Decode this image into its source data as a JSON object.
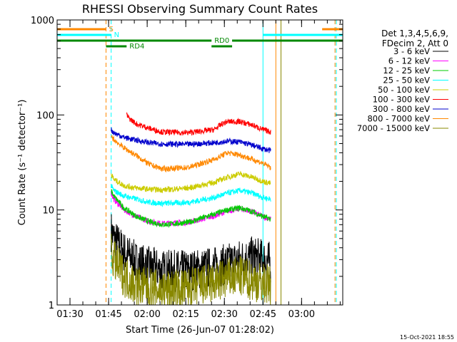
{
  "chart_data": {
    "type": "line",
    "title": "RHESSI Observing Summary Count Rates",
    "xlabel": "Start Time (26-Jun-07 01:28:02)",
    "ylabel": "Count Rate (s⁻¹ detector⁻¹)",
    "yscale": "log",
    "ylim": [
      1,
      1000
    ],
    "xlim_minutes": [
      85,
      196
    ],
    "x_ticks": [
      {
        "t": 90,
        "label": "01:30"
      },
      {
        "t": 105,
        "label": "01:45"
      },
      {
        "t": 120,
        "label": "02:00"
      },
      {
        "t": 135,
        "label": "02:15"
      },
      {
        "t": 150,
        "label": "02:30"
      },
      {
        "t": 165,
        "label": "02:45"
      },
      {
        "t": 180,
        "label": "03:00"
      }
    ],
    "y_ticks": [
      {
        "v": 1,
        "label": "1"
      },
      {
        "v": 10,
        "label": "10"
      },
      {
        "v": 100,
        "label": "100"
      },
      {
        "v": 1000,
        "label": "1000"
      }
    ],
    "timestamp": "15-Oct-2021 18:55",
    "legend_header": [
      "Det 1,3,4,5,6,9,",
      "FDecim 2, Att 0"
    ],
    "legend_position": "right",
    "series": [
      {
        "name": "3 - 6 keV",
        "color": "#000000",
        "t": [
          106,
          107,
          111,
          116,
          121,
          126,
          136,
          146,
          151,
          156,
          161,
          165,
          168
        ],
        "values": [
          6,
          5,
          3.6,
          2.8,
          2.5,
          2.3,
          2.3,
          2.5,
          2.7,
          3.0,
          3.2,
          3.0,
          2.8
        ]
      },
      {
        "name": "6 - 12 keV",
        "color": "#ff00ff",
        "t": [
          106,
          107,
          111,
          116,
          121,
          126,
          136,
          146,
          151,
          156,
          161,
          165,
          168
        ],
        "values": [
          15,
          13,
          10,
          8.5,
          7.5,
          7.2,
          7.4,
          8.6,
          9.7,
          10.3,
          9.6,
          8.5,
          8
        ]
      },
      {
        "name": "12 - 25 keV",
        "color": "#00cc00",
        "t": [
          106,
          107,
          111,
          116,
          121,
          126,
          136,
          146,
          151,
          156,
          161,
          165,
          168
        ],
        "values": [
          16,
          14,
          10.5,
          8.5,
          7.5,
          7.0,
          7.4,
          9.0,
          10.0,
          10.5,
          9.6,
          8.5,
          8
        ]
      },
      {
        "name": "25 - 50 keV",
        "color": "#00ffff",
        "t": [
          106,
          107,
          111,
          116,
          121,
          126,
          136,
          146,
          151,
          156,
          161,
          165,
          168
        ],
        "values": [
          18,
          16,
          14,
          13,
          12,
          11.7,
          12,
          13.5,
          15,
          16,
          15,
          13.5,
          13
        ]
      },
      {
        "name": "50 - 100 keV",
        "color": "#cccc00",
        "t": [
          106,
          107,
          111,
          116,
          121,
          126,
          136,
          146,
          151,
          156,
          161,
          165,
          168
        ],
        "values": [
          24,
          21,
          18,
          17,
          16.5,
          16.3,
          17,
          19.5,
          22,
          24,
          22,
          20,
          19
        ]
      },
      {
        "name": "100 - 300 keV",
        "color": "#ff0000",
        "t": [
          112,
          113,
          116,
          121,
          126,
          136,
          146,
          149,
          151,
          156,
          161,
          165,
          168
        ],
        "values": [
          100,
          92,
          80,
          72,
          66,
          65,
          70,
          80,
          85,
          85,
          78,
          70,
          66
        ]
      },
      {
        "name": "300 - 800 keV",
        "color": "#0000cc",
        "t": [
          106,
          107,
          111,
          116,
          121,
          126,
          136,
          146,
          151,
          156,
          161,
          165,
          168
        ],
        "values": [
          70,
          65,
          58,
          54,
          51,
          49.5,
          49,
          51,
          53,
          52,
          48,
          44,
          42
        ]
      },
      {
        "name": "800 - 7000 keV",
        "color": "#ff8800",
        "t": [
          106,
          107,
          111,
          116,
          121,
          126,
          136,
          146,
          151,
          156,
          161,
          165,
          168
        ],
        "values": [
          60,
          55,
          45,
          37,
          30,
          27,
          28,
          34,
          40,
          38,
          34,
          31,
          28
        ]
      },
      {
        "name": "7000 - 15000 keV",
        "color": "#888800",
        "t": [
          106,
          107,
          111,
          116,
          121,
          126,
          136,
          146,
          151,
          156,
          161,
          165,
          168
        ],
        "values": [
          3.4,
          3.0,
          2.0,
          1.6,
          1.5,
          1.4,
          1.5,
          1.7,
          1.9,
          2.0,
          1.8,
          1.7,
          1.6
        ]
      }
    ],
    "flags": [
      {
        "label": "S",
        "color": "#ff8800",
        "segments": [
          [
            85,
            104
          ],
          [
            188,
            196
          ]
        ]
      },
      {
        "label": "N",
        "color": "#00ffff",
        "segments": [
          [
            85,
            106
          ],
          [
            165,
            196
          ]
        ]
      },
      {
        "label": "RD0",
        "color": "#008800",
        "segments": [
          [
            85,
            145
          ],
          [
            153,
            196
          ]
        ]
      },
      {
        "label": "RD4",
        "color": "#008800",
        "segments": [
          [
            104,
            112
          ],
          [
            145,
            153
          ]
        ]
      }
    ],
    "vertical_markers": [
      {
        "t": 85,
        "color": "#00ffff",
        "style": "solid"
      },
      {
        "t": 104,
        "color": "#ff8800",
        "style": "dashed"
      },
      {
        "t": 106,
        "color": "#00ffff",
        "style": "dashed"
      },
      {
        "t": 165,
        "color": "#00ffff",
        "style": "solid"
      },
      {
        "t": 170,
        "color": "#ff8800",
        "style": "solid"
      },
      {
        "t": 172,
        "color": "#888800",
        "style": "solid"
      },
      {
        "t": 193,
        "color": "#ff8800",
        "style": "dashed"
      },
      {
        "t": 193.5,
        "color": "#00ffff",
        "style": "dashed"
      }
    ]
  }
}
